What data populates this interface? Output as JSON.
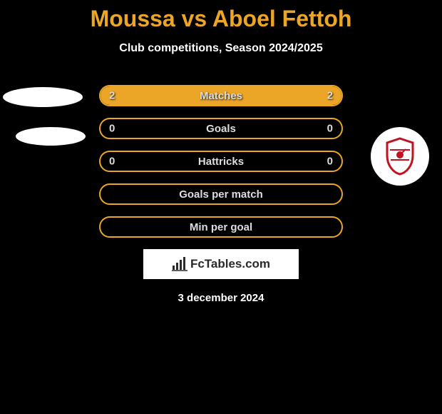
{
  "title_color": "#eba628",
  "border_color": "#eba628",
  "title": "Moussa vs Aboel Fettoh",
  "subtitle": "Club competitions, Season 2024/2025",
  "rows": [
    {
      "label": "Matches",
      "left": "2",
      "right": "2",
      "left_fill_pct": 50,
      "right_fill_pct": 50
    },
    {
      "label": "Goals",
      "left": "0",
      "right": "0",
      "left_fill_pct": 0,
      "right_fill_pct": 0
    },
    {
      "label": "Hattricks",
      "left": "0",
      "right": "0",
      "left_fill_pct": 0,
      "right_fill_pct": 0
    },
    {
      "label": "Goals per match",
      "left": "",
      "right": "",
      "left_fill_pct": 0,
      "right_fill_pct": 0
    },
    {
      "label": "Min per goal",
      "left": "",
      "right": "",
      "left_fill_pct": 0,
      "right_fill_pct": 0
    }
  ],
  "brand": "FcTables.com",
  "date": "3 december 2024",
  "club_shield": {
    "fill": "#ffffff",
    "stroke": "#c1121f",
    "stripes": "#c1121f"
  }
}
